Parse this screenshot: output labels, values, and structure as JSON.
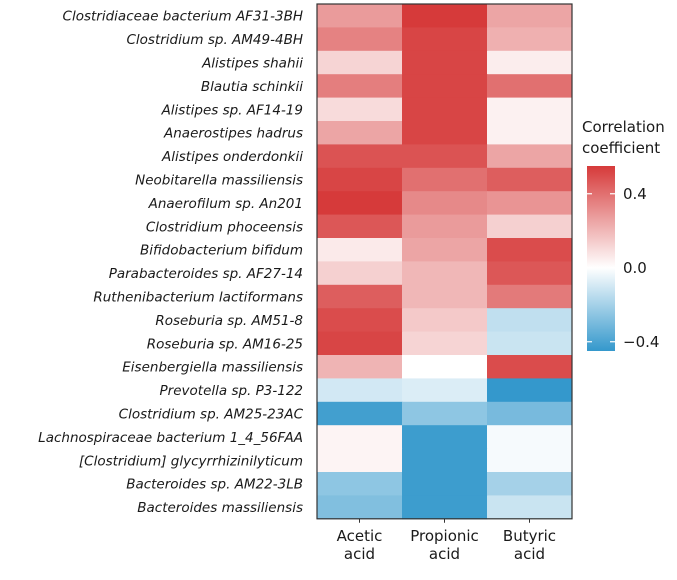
{
  "chart_data": {
    "type": "heatmap",
    "title": "",
    "columns": [
      "Acetic acid",
      "Propionic acid",
      "Butyric acid"
    ],
    "column_labels": [
      [
        "Acetic",
        "acid"
      ],
      [
        "Propionic",
        "acid"
      ],
      [
        "Butyric",
        "acid"
      ]
    ],
    "rows": [
      "Clostridiaceae bacterium AF31-3BH",
      "Clostridium sp. AM49-4BH",
      "Alistipes shahii",
      "Blautia schinkii",
      "Alistipes sp. AF14-19",
      "Anaerostipes hadrus",
      "Alistipes onderdonkii",
      "Neobitarella massiliensis",
      "Anaerofilum sp. An201",
      "Clostridium phoceensis",
      "Bifidobacterium bifidum",
      "Parabacteroides sp. AF27-14",
      "Ruthenibacterium lactiformans",
      "Roseburia sp. AM51-8",
      "Roseburia sp. AM16-25",
      "Eisenbergiella massiliensis",
      "Prevotella sp. P3-122",
      "Clostridium sp. AM25-23AC",
      "Lachnospiraceae bacterium 1_4_56FAA",
      "[Clostridium] glycyrrhizinilyticum",
      "Bacteroides sp. AM22-3LB",
      "Bacteroides massiliensis"
    ],
    "values": [
      [
        0.28,
        0.58,
        0.25
      ],
      [
        0.35,
        0.52,
        0.22
      ],
      [
        0.12,
        0.52,
        0.05
      ],
      [
        0.36,
        0.52,
        0.4
      ],
      [
        0.1,
        0.52,
        0.04
      ],
      [
        0.25,
        0.52,
        0.04
      ],
      [
        0.48,
        0.48,
        0.25
      ],
      [
        0.52,
        0.4,
        0.45
      ],
      [
        0.55,
        0.33,
        0.3
      ],
      [
        0.47,
        0.28,
        0.13
      ],
      [
        0.06,
        0.25,
        0.5
      ],
      [
        0.13,
        0.2,
        0.47
      ],
      [
        0.45,
        0.2,
        0.37
      ],
      [
        0.5,
        0.15,
        -0.14
      ],
      [
        0.52,
        0.12,
        -0.12
      ],
      [
        0.21,
        0.0,
        0.5
      ],
      [
        -0.1,
        -0.08,
        -0.46
      ],
      [
        -0.42,
        -0.25,
        -0.3
      ],
      [
        0.03,
        -0.43,
        -0.02
      ],
      [
        0.03,
        -0.43,
        -0.02
      ],
      [
        -0.25,
        -0.43,
        -0.2
      ],
      [
        -0.28,
        -0.43,
        -0.12
      ]
    ],
    "value_range": [
      -0.45,
      0.55
    ],
    "colors": {
      "low": "#3498cc",
      "mid": "#ffffff",
      "high": "#d63a3a"
    },
    "legend": {
      "title": [
        "Correlation",
        "coefficient"
      ],
      "ticks": [
        0.4,
        0.0,
        -0.4
      ],
      "tick_labels": [
        "0.4",
        "0.0",
        "−0.4"
      ],
      "position": "right"
    }
  }
}
